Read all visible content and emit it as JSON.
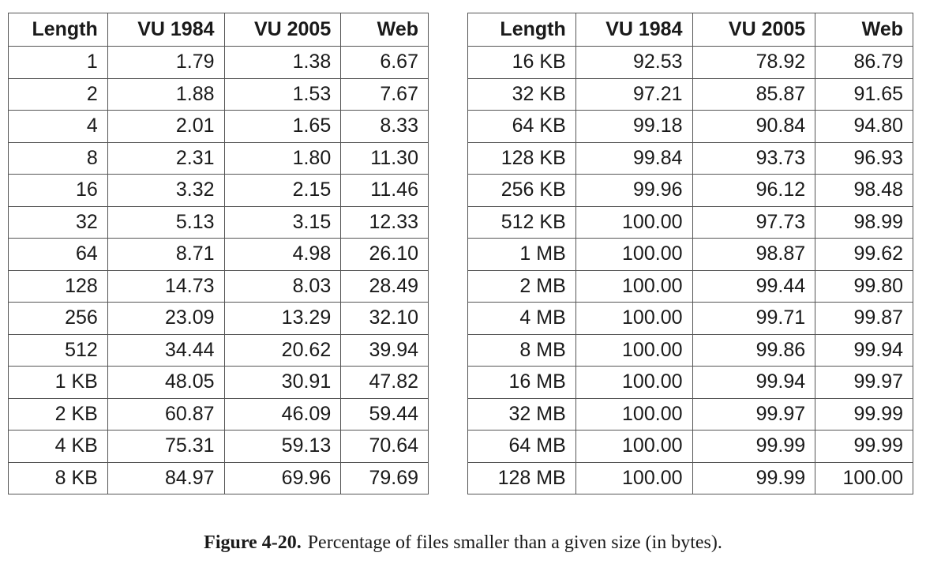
{
  "tables": [
    {
      "headers": [
        "Length",
        "VU 1984",
        "VU 2005",
        "Web"
      ],
      "rows": [
        [
          "1",
          "1.79",
          "1.38",
          "6.67"
        ],
        [
          "2",
          "1.88",
          "1.53",
          "7.67"
        ],
        [
          "4",
          "2.01",
          "1.65",
          "8.33"
        ],
        [
          "8",
          "2.31",
          "1.80",
          "11.30"
        ],
        [
          "16",
          "3.32",
          "2.15",
          "11.46"
        ],
        [
          "32",
          "5.13",
          "3.15",
          "12.33"
        ],
        [
          "64",
          "8.71",
          "4.98",
          "26.10"
        ],
        [
          "128",
          "14.73",
          "8.03",
          "28.49"
        ],
        [
          "256",
          "23.09",
          "13.29",
          "32.10"
        ],
        [
          "512",
          "34.44",
          "20.62",
          "39.94"
        ],
        [
          "1 KB",
          "48.05",
          "30.91",
          "47.82"
        ],
        [
          "2 KB",
          "60.87",
          "46.09",
          "59.44"
        ],
        [
          "4 KB",
          "75.31",
          "59.13",
          "70.64"
        ],
        [
          "8 KB",
          "84.97",
          "69.96",
          "79.69"
        ]
      ]
    },
    {
      "headers": [
        "Length",
        "VU 1984",
        "VU 2005",
        "Web"
      ],
      "rows": [
        [
          "16 KB",
          "92.53",
          "78.92",
          "86.79"
        ],
        [
          "32 KB",
          "97.21",
          "85.87",
          "91.65"
        ],
        [
          "64 KB",
          "99.18",
          "90.84",
          "94.80"
        ],
        [
          "128 KB",
          "99.84",
          "93.73",
          "96.93"
        ],
        [
          "256 KB",
          "99.96",
          "96.12",
          "98.48"
        ],
        [
          "512 KB",
          "100.00",
          "97.73",
          "98.99"
        ],
        [
          "1 MB",
          "100.00",
          "98.87",
          "99.62"
        ],
        [
          "2 MB",
          "100.00",
          "99.44",
          "99.80"
        ],
        [
          "4 MB",
          "100.00",
          "99.71",
          "99.87"
        ],
        [
          "8 MB",
          "100.00",
          "99.86",
          "99.94"
        ],
        [
          "16 MB",
          "100.00",
          "99.94",
          "99.97"
        ],
        [
          "32 MB",
          "100.00",
          "99.97",
          "99.99"
        ],
        [
          "64 MB",
          "100.00",
          "99.99",
          "99.99"
        ],
        [
          "128 MB",
          "100.00",
          "99.99",
          "100.00"
        ]
      ]
    }
  ],
  "caption": {
    "label": "Figure 4-20.",
    "text": "Percentage of files smaller than a given size (in bytes)."
  }
}
